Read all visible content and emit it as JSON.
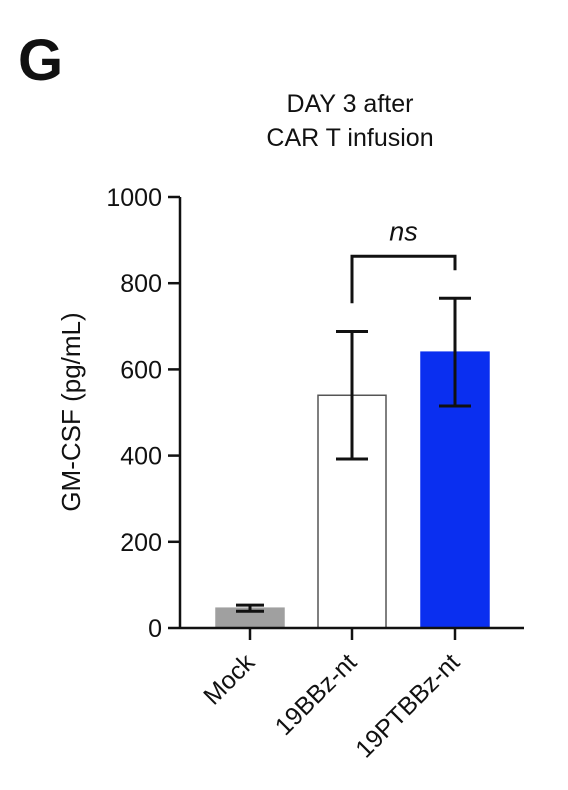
{
  "panel_label": "G",
  "chart_data": {
    "type": "bar",
    "title_lines": [
      "DAY 3 after",
      "CAR T infusion"
    ],
    "ylabel": "GM-CSF  (pg/mL)",
    "ylim": [
      0,
      1000
    ],
    "yticks": [
      0,
      200,
      400,
      600,
      800,
      1000
    ],
    "categories": [
      "Mock",
      "19BBz-nt",
      "19PTBBz-nt"
    ],
    "values": [
      46,
      540,
      640
    ],
    "errors": [
      7,
      148,
      125
    ],
    "bar_colors": [
      "#a0a0a0",
      "#ffffff",
      "#0a2ff0"
    ],
    "bar_edges": [
      "#a0a0a0",
      "#555555",
      "#0a2ff0"
    ],
    "significance": {
      "label": "ns",
      "between": [
        1,
        2
      ]
    }
  }
}
